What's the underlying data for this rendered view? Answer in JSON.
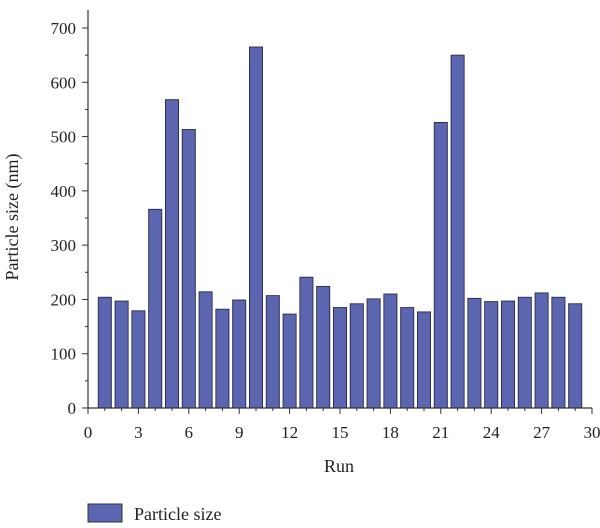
{
  "chart_data": {
    "type": "bar",
    "xlabel": "Run",
    "ylabel": "Particle size (nm)",
    "xlim": [
      0,
      30
    ],
    "ylim": [
      0,
      700
    ],
    "xticks": [
      0,
      3,
      6,
      9,
      12,
      15,
      18,
      21,
      24,
      27,
      30
    ],
    "yticks": [
      0,
      100,
      200,
      300,
      400,
      500,
      600,
      700
    ],
    "grid": false,
    "legend_position": "bottom-left",
    "bar_color": "#5b65b0",
    "series": [
      {
        "name": "Particle size",
        "x": [
          1,
          2,
          3,
          4,
          5,
          6,
          7,
          8,
          9,
          10,
          11,
          12,
          13,
          14,
          15,
          16,
          17,
          18,
          19,
          20,
          21,
          22,
          23,
          24,
          25,
          26,
          27,
          28,
          29
        ],
        "values": [
          204,
          197,
          179,
          366,
          568,
          513,
          214,
          182,
          199,
          665,
          207,
          173,
          241,
          224,
          185,
          192,
          201,
          210,
          185,
          177,
          526,
          650,
          202,
          196,
          197,
          204,
          212,
          204,
          192
        ]
      }
    ]
  }
}
